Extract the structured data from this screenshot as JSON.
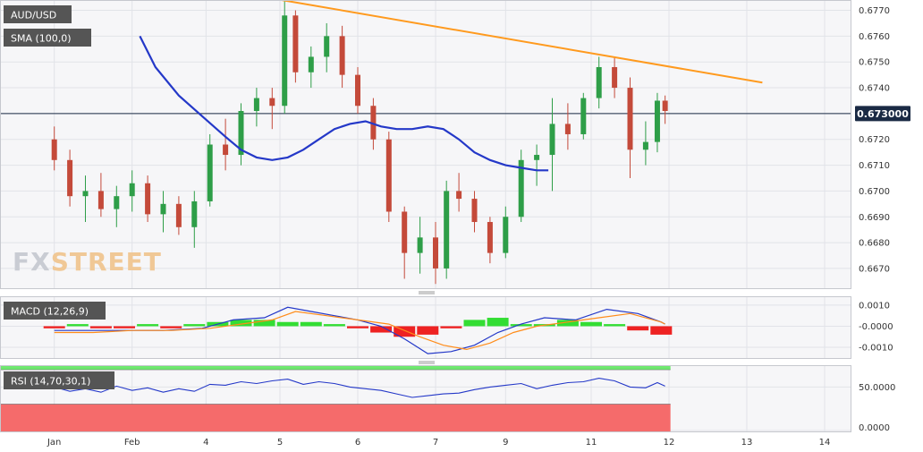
{
  "colors": {
    "panel_bg": "#f6f6f8",
    "up": "#2e9e48",
    "down": "#c44a3a",
    "sma": "#2438c8",
    "trend": "#ff9a1e",
    "macd_line": "#2438c8",
    "signal_line": "#ff8c1a",
    "hist_pos": "#33dd33",
    "hist_neg": "#ee2222",
    "rsi_line": "#2438c8",
    "rsi_overbought": "#6fe86f",
    "rsi_oversold": "#f56b6b",
    "label_bg": "#555555",
    "price_tag_bg": "#1a2a44"
  },
  "brand": {
    "logo_fx": "FX",
    "logo_street": "STREET"
  },
  "chart_data": [
    {
      "type": "candlestick",
      "title": "AUD/USD",
      "ylim": [
        0.6662,
        0.6774
      ],
      "yticks": [
        0.667,
        0.668,
        0.669,
        0.67,
        0.671,
        0.672,
        0.673,
        0.674,
        0.675,
        0.676,
        0.677
      ],
      "ytick_labels": [
        "0.6670",
        "0.6680",
        "0.6690",
        "0.6700",
        "0.6710",
        "0.6720",
        "0.6730",
        "0.6740",
        "0.6750",
        "0.6760",
        "0.6770"
      ],
      "current_price": 0.673,
      "current_price_label": "0.673000",
      "indicator_label": "SMA (100,0)",
      "trendline": [
        [
          0.2,
          0.6774
        ],
        [
          62,
          0.6742
        ]
      ],
      "sma_points": [
        [
          -18,
          0.676
        ],
        [
          -16,
          0.6748
        ],
        [
          -13,
          0.6737
        ],
        [
          -10,
          0.6729
        ],
        [
          -7,
          0.6721
        ],
        [
          -5,
          0.6716
        ],
        [
          -3,
          0.6713
        ],
        [
          -1,
          0.6712
        ],
        [
          1,
          0.6713
        ],
        [
          3,
          0.6716
        ],
        [
          5,
          0.672
        ],
        [
          7,
          0.6724
        ],
        [
          9,
          0.6726
        ],
        [
          11,
          0.6727
        ],
        [
          13,
          0.6725
        ],
        [
          15,
          0.6724
        ],
        [
          17,
          0.6724
        ],
        [
          19,
          0.6725
        ],
        [
          21,
          0.6724
        ],
        [
          23,
          0.672
        ],
        [
          25,
          0.6715
        ],
        [
          27,
          0.6712
        ],
        [
          29,
          0.671
        ],
        [
          31,
          0.6709
        ],
        [
          33,
          0.6708
        ],
        [
          34.5,
          0.6708
        ]
      ],
      "candles": [
        {
          "x": -29,
          "o": 0.672,
          "h": 0.6725,
          "l": 0.6708,
          "c": 0.6712
        },
        {
          "x": -27,
          "o": 0.6712,
          "h": 0.6716,
          "l": 0.6694,
          "c": 0.6698
        },
        {
          "x": -25,
          "o": 0.6698,
          "h": 0.6706,
          "l": 0.6688,
          "c": 0.67
        },
        {
          "x": -23,
          "o": 0.67,
          "h": 0.6707,
          "l": 0.669,
          "c": 0.6693
        },
        {
          "x": -21,
          "o": 0.6693,
          "h": 0.6702,
          "l": 0.6686,
          "c": 0.6698
        },
        {
          "x": -19,
          "o": 0.6698,
          "h": 0.6708,
          "l": 0.6692,
          "c": 0.6703
        },
        {
          "x": -17,
          "o": 0.6703,
          "h": 0.6706,
          "l": 0.6688,
          "c": 0.6691
        },
        {
          "x": -15,
          "o": 0.6691,
          "h": 0.67,
          "l": 0.6684,
          "c": 0.6695
        },
        {
          "x": -13,
          "o": 0.6695,
          "h": 0.6698,
          "l": 0.6683,
          "c": 0.6686
        },
        {
          "x": -11,
          "o": 0.6686,
          "h": 0.67,
          "l": 0.6678,
          "c": 0.6696
        },
        {
          "x": -9,
          "o": 0.6696,
          "h": 0.6722,
          "l": 0.6694,
          "c": 0.6718
        },
        {
          "x": -7,
          "o": 0.6718,
          "h": 0.6728,
          "l": 0.6708,
          "c": 0.6714
        },
        {
          "x": -5,
          "o": 0.6714,
          "h": 0.6734,
          "l": 0.671,
          "c": 0.6731
        },
        {
          "x": -3,
          "o": 0.6731,
          "h": 0.674,
          "l": 0.6725,
          "c": 0.6736
        },
        {
          "x": -1,
          "o": 0.6736,
          "h": 0.674,
          "l": 0.6724,
          "c": 0.6733
        },
        {
          "x": 0.6,
          "o": 0.6733,
          "h": 0.6774,
          "l": 0.673,
          "c": 0.6768
        },
        {
          "x": 2,
          "o": 0.6768,
          "h": 0.677,
          "l": 0.6742,
          "c": 0.6746
        },
        {
          "x": 4,
          "o": 0.6746,
          "h": 0.6756,
          "l": 0.674,
          "c": 0.6752
        },
        {
          "x": 6,
          "o": 0.6752,
          "h": 0.6765,
          "l": 0.6746,
          "c": 0.676
        },
        {
          "x": 8,
          "o": 0.676,
          "h": 0.6764,
          "l": 0.674,
          "c": 0.6745
        },
        {
          "x": 10,
          "o": 0.6745,
          "h": 0.6748,
          "l": 0.673,
          "c": 0.6733
        },
        {
          "x": 12,
          "o": 0.6733,
          "h": 0.6736,
          "l": 0.6716,
          "c": 0.672
        },
        {
          "x": 14,
          "o": 0.672,
          "h": 0.6723,
          "l": 0.6688,
          "c": 0.6692
        },
        {
          "x": 16,
          "o": 0.6692,
          "h": 0.6694,
          "l": 0.6666,
          "c": 0.6676
        },
        {
          "x": 18,
          "o": 0.6676,
          "h": 0.669,
          "l": 0.6668,
          "c": 0.6682
        },
        {
          "x": 20,
          "o": 0.6682,
          "h": 0.6688,
          "l": 0.6664,
          "c": 0.667
        },
        {
          "x": 21.4,
          "o": 0.667,
          "h": 0.6704,
          "l": 0.6666,
          "c": 0.67
        },
        {
          "x": 23,
          "o": 0.67,
          "h": 0.6707,
          "l": 0.6692,
          "c": 0.6697
        },
        {
          "x": 25,
          "o": 0.6697,
          "h": 0.67,
          "l": 0.6684,
          "c": 0.6688
        },
        {
          "x": 27,
          "o": 0.6688,
          "h": 0.669,
          "l": 0.6672,
          "c": 0.6676
        },
        {
          "x": 29,
          "o": 0.6676,
          "h": 0.6694,
          "l": 0.6674,
          "c": 0.669
        },
        {
          "x": 31,
          "o": 0.669,
          "h": 0.6716,
          "l": 0.6688,
          "c": 0.6712
        },
        {
          "x": 33,
          "o": 0.6712,
          "h": 0.6718,
          "l": 0.6702,
          "c": 0.6714
        },
        {
          "x": 35,
          "o": 0.6714,
          "h": 0.6736,
          "l": 0.67,
          "c": 0.6726
        },
        {
          "x": 37,
          "o": 0.6726,
          "h": 0.6734,
          "l": 0.6716,
          "c": 0.6722
        },
        {
          "x": 39,
          "o": 0.6722,
          "h": 0.6738,
          "l": 0.672,
          "c": 0.6736
        },
        {
          "x": 41,
          "o": 0.6736,
          "h": 0.6752,
          "l": 0.6732,
          "c": 0.6748
        },
        {
          "x": 43,
          "o": 0.6748,
          "h": 0.6752,
          "l": 0.6736,
          "c": 0.674
        },
        {
          "x": 45,
          "o": 0.674,
          "h": 0.6744,
          "l": 0.6705,
          "c": 0.6716
        },
        {
          "x": 47,
          "o": 0.6716,
          "h": 0.6727,
          "l": 0.671,
          "c": 0.6719
        },
        {
          "x": 48.5,
          "o": 0.6719,
          "h": 0.6738,
          "l": 0.6715,
          "c": 0.6735
        },
        {
          "x": 49.5,
          "o": 0.6735,
          "h": 0.6737,
          "l": 0.6726,
          "c": 0.6731
        }
      ],
      "x_ticks": [
        {
          "x": -29,
          "label": "Jan"
        },
        {
          "x": -19,
          "label": "Feb"
        },
        {
          "x": -9.5,
          "label": "4"
        },
        {
          "x": 0,
          "label": "5"
        },
        {
          "x": 10,
          "label": "6"
        },
        {
          "x": 20,
          "label": "7"
        },
        {
          "x": 29,
          "label": "9"
        },
        {
          "x": 40,
          "label": "11"
        },
        {
          "x": 50,
          "label": "12"
        },
        {
          "x": 60,
          "label": "13"
        },
        {
          "x": 70,
          "label": "14"
        }
      ]
    },
    {
      "type": "bar+line",
      "title": "MACD (12,26,9)",
      "ylim": [
        -0.00155,
        0.00142
      ],
      "yticks": [
        0.001,
        0.0,
        -0.001
      ],
      "ytick_labels": [
        "0.0010",
        "-0.0000",
        "-0.0010"
      ],
      "macd_points": [
        [
          -29,
          -0.0002
        ],
        [
          -25,
          -0.0002
        ],
        [
          -20,
          -0.0002
        ],
        [
          -15,
          -0.0002
        ],
        [
          -10,
          -0.0001
        ],
        [
          -6,
          0.0003
        ],
        [
          -2,
          0.0004
        ],
        [
          1,
          0.0009
        ],
        [
          4,
          0.0007
        ],
        [
          7,
          0.0005
        ],
        [
          10,
          0.0003
        ],
        [
          13,
          0.0
        ],
        [
          16,
          -0.0006
        ],
        [
          19,
          -0.0013
        ],
        [
          22,
          -0.0012
        ],
        [
          25,
          -0.0009
        ],
        [
          28,
          -0.0003
        ],
        [
          31,
          0.0001
        ],
        [
          34,
          0.0004
        ],
        [
          38,
          0.0003
        ],
        [
          42,
          0.0008
        ],
        [
          46,
          0.0006
        ],
        [
          49,
          0.0002
        ],
        [
          49.5,
          0.0001
        ]
      ],
      "signal_points": [
        [
          -29,
          -0.0003
        ],
        [
          -24,
          -0.0003
        ],
        [
          -19,
          -0.0002
        ],
        [
          -14,
          -0.0002
        ],
        [
          -9,
          -0.0001
        ],
        [
          -5,
          0.0001
        ],
        [
          -1,
          0.0003
        ],
        [
          2,
          0.0007
        ],
        [
          6,
          0.0005
        ],
        [
          10,
          0.0003
        ],
        [
          14,
          0.0001
        ],
        [
          18,
          -0.0005
        ],
        [
          21,
          -0.0009
        ],
        [
          24,
          -0.0011
        ],
        [
          27,
          -0.0008
        ],
        [
          30,
          -0.0003
        ],
        [
          33,
          0.0
        ],
        [
          37,
          0.0002
        ],
        [
          41,
          0.0004
        ],
        [
          45,
          0.0006
        ],
        [
          49,
          0.0002
        ],
        [
          49.5,
          0.0001
        ]
      ],
      "histogram": [
        {
          "x": -29,
          "v": -0.0001
        },
        {
          "x": -26,
          "v": 0.0001
        },
        {
          "x": -23,
          "v": -0.0001
        },
        {
          "x": -20,
          "v": -0.0001
        },
        {
          "x": -17,
          "v": 0.0001
        },
        {
          "x": -14,
          "v": -0.0001
        },
        {
          "x": -11,
          "v": 0.0001
        },
        {
          "x": -8,
          "v": 0.0002
        },
        {
          "x": -5,
          "v": 0.0003
        },
        {
          "x": -2,
          "v": 0.0003
        },
        {
          "x": 1,
          "v": 0.0002
        },
        {
          "x": 4,
          "v": 0.0002
        },
        {
          "x": 7,
          "v": 0.0001
        },
        {
          "x": 10,
          "v": -0.0001
        },
        {
          "x": 13,
          "v": -0.0003
        },
        {
          "x": 16,
          "v": -0.0005
        },
        {
          "x": 19,
          "v": -0.0004
        },
        {
          "x": 22,
          "v": -0.0001
        },
        {
          "x": 25,
          "v": 0.0003
        },
        {
          "x": 28,
          "v": 0.0004
        },
        {
          "x": 31,
          "v": 0.0001
        },
        {
          "x": 34,
          "v": 0.0001
        },
        {
          "x": 37,
          "v": 0.0003
        },
        {
          "x": 40,
          "v": 0.0002
        },
        {
          "x": 43,
          "v": 0.0001
        },
        {
          "x": 46,
          "v": -0.0002
        },
        {
          "x": 49,
          "v": -0.0004
        }
      ]
    },
    {
      "type": "line",
      "title": "RSI (14,70,30,1)",
      "ylim": [
        -2,
        75
      ],
      "overbought": 70,
      "oversold": 30,
      "yticks": [
        50.0,
        0.0
      ],
      "ytick_labels": [
        "50.0000",
        "0.0000"
      ],
      "rsi_points": [
        [
          -29,
          50
        ],
        [
          -27,
          45
        ],
        [
          -25,
          48
        ],
        [
          -23,
          44
        ],
        [
          -21,
          51
        ],
        [
          -19,
          46
        ],
        [
          -17,
          49
        ],
        [
          -15,
          44
        ],
        [
          -13,
          48
        ],
        [
          -11,
          45
        ],
        [
          -9,
          53
        ],
        [
          -7,
          52
        ],
        [
          -5,
          56
        ],
        [
          -3,
          54
        ],
        [
          -1,
          57
        ],
        [
          1,
          59
        ],
        [
          3,
          53
        ],
        [
          5,
          56
        ],
        [
          7,
          54
        ],
        [
          9,
          50
        ],
        [
          11,
          48
        ],
        [
          13,
          46
        ],
        [
          15,
          42
        ],
        [
          17,
          38
        ],
        [
          19,
          40
        ],
        [
          21,
          42
        ],
        [
          23,
          43
        ],
        [
          25,
          47
        ],
        [
          27,
          50
        ],
        [
          29,
          52
        ],
        [
          31,
          54
        ],
        [
          33,
          48
        ],
        [
          35,
          52
        ],
        [
          37,
          55
        ],
        [
          39,
          56
        ],
        [
          41,
          60
        ],
        [
          43,
          57
        ],
        [
          45,
          50
        ],
        [
          47,
          49
        ],
        [
          48.5,
          55
        ],
        [
          49.5,
          51
        ]
      ]
    }
  ]
}
